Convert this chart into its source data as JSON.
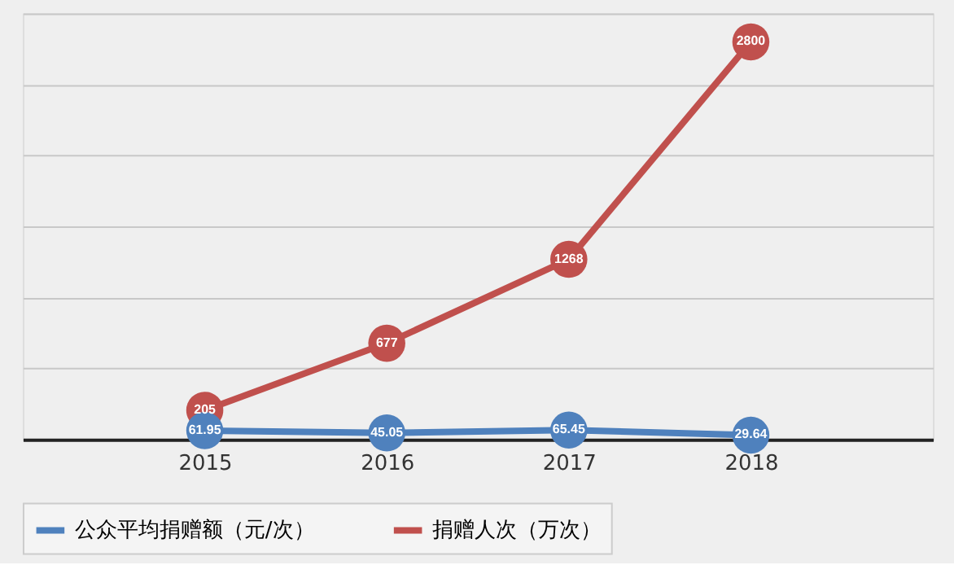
{
  "chart_data": {
    "type": "line",
    "categories": [
      "2015",
      "2016",
      "2017",
      "2018"
    ],
    "series": [
      {
        "name": "公众平均捐赠额（元/次）",
        "color": "#4f81bd",
        "values": [
          61.95,
          45.05,
          65.45,
          29.64
        ]
      },
      {
        "name": "捐赠人次（万次）",
        "color": "#c0504d",
        "values": [
          205,
          677,
          1268,
          2800
        ]
      }
    ],
    "ylim": [
      0,
      3000
    ],
    "yticks": [
      0,
      500,
      1000,
      1500,
      2000,
      2500,
      3000
    ],
    "tick_labels": "x",
    "grid": "y",
    "legend": "bottom",
    "marker": "circle",
    "line_style": "solid",
    "data_labels": true
  }
}
